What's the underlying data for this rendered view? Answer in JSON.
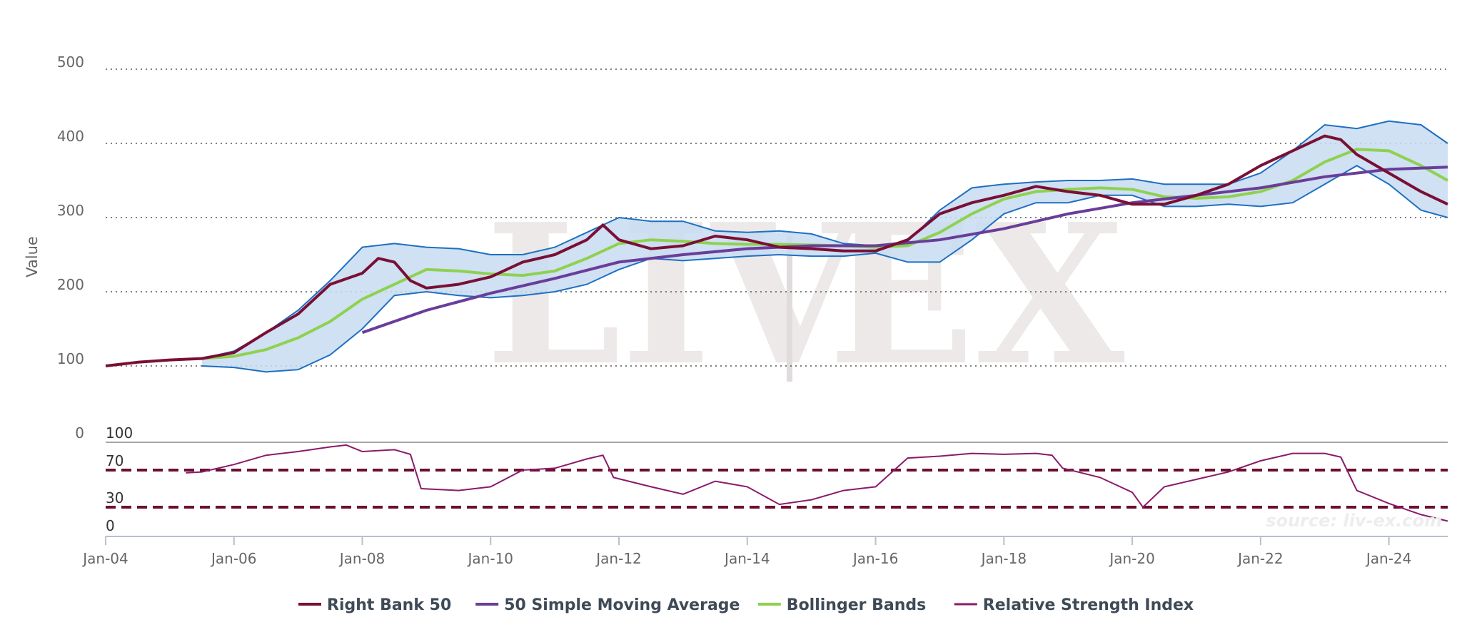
{
  "chart_data": {
    "type": "line",
    "watermark": "LIV|EX",
    "source": "source: liv-ex.com",
    "y_axis": {
      "title": "Value",
      "ylim": [
        0,
        500
      ],
      "ticks": [
        0,
        100,
        200,
        300,
        400,
        500
      ],
      "grid": true
    },
    "x_axis": {
      "ticks": [
        "Jan-04",
        "Jan-06",
        "Jan-08",
        "Jan-10",
        "Jan-12",
        "Jan-14",
        "Jan-16",
        "Jan-18",
        "Jan-20",
        "Jan-22",
        "Jan-24"
      ]
    },
    "rsi_axis": {
      "ylim": [
        0,
        100
      ],
      "ticks": [
        0,
        30,
        70,
        100
      ],
      "bands": [
        30,
        70
      ]
    },
    "colors": {
      "index": "#7a0f36",
      "sma": "#6a3d9a",
      "bollinger_mid": "#8fd14f",
      "bollinger_band_line": "#1f6fc2",
      "bollinger_fill": "#c7dcf1",
      "rsi": "#8b1a6b",
      "rsi_threshold": "#6b0f2e"
    },
    "legend": [
      {
        "label": "Right Bank 50",
        "color": "#7a0f36",
        "width": 3
      },
      {
        "label": "50 Simple Moving Average",
        "color": "#6a3d9a",
        "width": 3
      },
      {
        "label": "Bollinger Bands",
        "color": "#8fd14f",
        "width": 3
      },
      {
        "label": "Relative Strength Index",
        "color": "#8b1a6b",
        "width": 2
      }
    ],
    "series": [
      {
        "name": "Right Bank 50",
        "x": [
          "2004-01",
          "2004-07",
          "2005-01",
          "2005-07",
          "2006-01",
          "2006-07",
          "2007-01",
          "2007-07",
          "2008-01",
          "2008-04",
          "2008-07",
          "2008-10",
          "2009-01",
          "2009-07",
          "2010-01",
          "2010-07",
          "2011-01",
          "2011-07",
          "2011-10",
          "2012-01",
          "2012-07",
          "2013-01",
          "2013-07",
          "2014-01",
          "2014-07",
          "2015-01",
          "2015-07",
          "2016-01",
          "2016-07",
          "2017-01",
          "2017-07",
          "2018-01",
          "2018-07",
          "2019-01",
          "2019-07",
          "2020-01",
          "2020-07",
          "2021-01",
          "2021-07",
          "2022-01",
          "2022-07",
          "2023-01",
          "2023-04",
          "2023-07",
          "2024-01",
          "2024-07",
          "2024-12"
        ],
        "values": [
          100,
          105,
          108,
          110,
          118,
          145,
          170,
          210,
          225,
          245,
          240,
          215,
          205,
          210,
          220,
          240,
          250,
          270,
          290,
          270,
          258,
          262,
          275,
          270,
          260,
          258,
          255,
          255,
          270,
          305,
          320,
          330,
          342,
          335,
          330,
          318,
          318,
          330,
          345,
          370,
          390,
          410,
          405,
          385,
          360,
          335,
          318
        ]
      },
      {
        "name": "50 Simple Moving Average",
        "x": [
          "2008-01",
          "2009-01",
          "2010-01",
          "2011-01",
          "2012-01",
          "2013-01",
          "2014-01",
          "2015-01",
          "2016-01",
          "2017-01",
          "2018-01",
          "2019-01",
          "2020-01",
          "2021-01",
          "2022-01",
          "2023-01",
          "2024-01",
          "2024-12"
        ],
        "values": [
          145,
          175,
          198,
          218,
          240,
          250,
          258,
          262,
          262,
          270,
          285,
          305,
          320,
          330,
          340,
          355,
          365,
          368
        ]
      },
      {
        "name": "Bollinger Bands",
        "x": [
          "2005-07",
          "2006-01",
          "2006-07",
          "2007-01",
          "2007-07",
          "2008-01",
          "2008-07",
          "2009-01",
          "2009-07",
          "2010-01",
          "2010-07",
          "2011-01",
          "2011-07",
          "2012-01",
          "2012-07",
          "2013-01",
          "2013-07",
          "2014-01",
          "2014-07",
          "2015-01",
          "2015-07",
          "2016-01",
          "2016-07",
          "2017-01",
          "2017-07",
          "2018-01",
          "2018-07",
          "2019-01",
          "2019-07",
          "2020-01",
          "2020-07",
          "2021-01",
          "2021-07",
          "2022-01",
          "2022-07",
          "2023-01",
          "2023-07",
          "2024-01",
          "2024-07",
          "2024-12"
        ],
        "values": [
          110,
          113,
          122,
          138,
          160,
          190,
          210,
          230,
          228,
          224,
          222,
          228,
          245,
          265,
          270,
          268,
          265,
          264,
          264,
          263,
          262,
          260,
          262,
          280,
          305,
          325,
          335,
          338,
          340,
          338,
          328,
          326,
          328,
          335,
          350,
          375,
          392,
          390,
          370,
          350
        ],
        "upper": [
          110,
          120,
          145,
          175,
          215,
          260,
          265,
          260,
          258,
          250,
          250,
          260,
          280,
          300,
          295,
          295,
          282,
          280,
          282,
          278,
          265,
          262,
          268,
          310,
          340,
          345,
          348,
          350,
          350,
          352,
          345,
          345,
          345,
          360,
          390,
          425,
          420,
          430,
          425,
          400
        ],
        "lower": [
          100,
          98,
          92,
          95,
          115,
          150,
          195,
          200,
          195,
          192,
          195,
          200,
          210,
          230,
          245,
          242,
          245,
          248,
          250,
          248,
          248,
          252,
          240,
          240,
          270,
          305,
          320,
          320,
          330,
          330,
          315,
          315,
          318,
          315,
          320,
          345,
          370,
          345,
          310,
          300
        ]
      }
    ],
    "rsi": {
      "name": "Relative Strength Index",
      "x": [
        "2005-04",
        "2005-07",
        "2006-01",
        "2006-07",
        "2007-01",
        "2007-07",
        "2007-10",
        "2008-01",
        "2008-07",
        "2008-10",
        "2008-12",
        "2009-07",
        "2010-01",
        "2010-07",
        "2011-01",
        "2011-07",
        "2011-10",
        "2011-12",
        "2012-07",
        "2013-01",
        "2013-07",
        "2014-01",
        "2014-07",
        "2015-01",
        "2015-07",
        "2016-01",
        "2016-07",
        "2017-01",
        "2017-07",
        "2018-01",
        "2018-07",
        "2018-10",
        "2018-12",
        "2019-07",
        "2020-01",
        "2020-03",
        "2020-07",
        "2021-01",
        "2021-07",
        "2022-01",
        "2022-07",
        "2023-01",
        "2023-04",
        "2023-07",
        "2024-01",
        "2024-07",
        "2024-12"
      ],
      "values": [
        67,
        68,
        76,
        86,
        90,
        95,
        97,
        90,
        92,
        87,
        50,
        48,
        52,
        70,
        72,
        82,
        86,
        62,
        52,
        44,
        58,
        52,
        33,
        38,
        48,
        52,
        83,
        85,
        88,
        87,
        88,
        86,
        72,
        62,
        46,
        30,
        52,
        60,
        68,
        80,
        88,
        88,
        84,
        48,
        34,
        22,
        15
      ]
    }
  }
}
